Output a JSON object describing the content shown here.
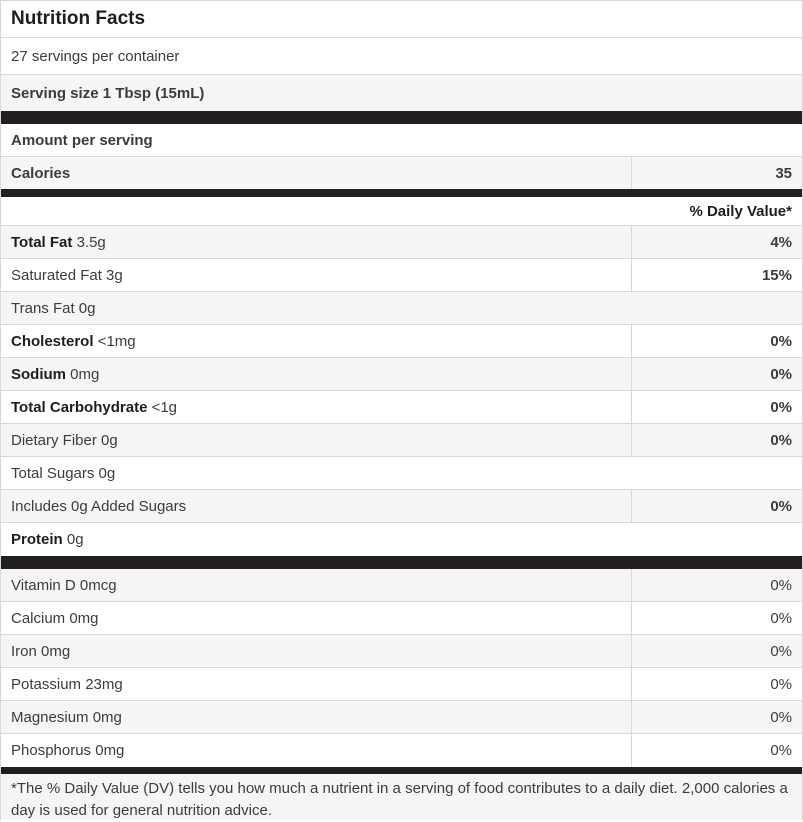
{
  "colors": {
    "bar": "#231f20",
    "alt_row_bg": "#f5f5f5",
    "border": "#d8d8d8",
    "text": "#3c3c3c",
    "text_bold": "#1e1e1e"
  },
  "header": {
    "title": "Nutrition Facts"
  },
  "serving_info": {
    "servings_per_container": "27 servings per container",
    "serving_size": "Serving size 1 Tbsp (15mL)"
  },
  "calories_section": {
    "amount_label": "Amount per serving",
    "calories_label": "Calories",
    "calories_value": "35"
  },
  "daily_value_header": "% Daily Value*",
  "nutrients": [
    {
      "bold": "Total Fat",
      "rest": " 3.5g",
      "dv": "4%"
    },
    {
      "bold": "",
      "rest": "Saturated Fat 3g",
      "dv": "15%"
    },
    {
      "bold": "",
      "rest": "Trans Fat 0g",
      "dv": ""
    },
    {
      "bold": "Cholesterol",
      "rest": " <1mg",
      "dv": "0%"
    },
    {
      "bold": "Sodium",
      "rest": " 0mg",
      "dv": "0%"
    },
    {
      "bold": "Total Carbohydrate",
      "rest": " <1g",
      "dv": "0%"
    },
    {
      "bold": "",
      "rest": "Dietary Fiber 0g",
      "dv": "0%"
    },
    {
      "bold": "",
      "rest": "Total Sugars 0g",
      "dv": ""
    },
    {
      "bold": "",
      "rest": "Includes 0g Added Sugars",
      "dv": "0%"
    },
    {
      "bold": "Protein",
      "rest": " 0g",
      "dv": ""
    }
  ],
  "micronutrients": [
    {
      "label": "Vitamin D 0mcg",
      "dv": "0%"
    },
    {
      "label": "Calcium 0mg",
      "dv": "0%"
    },
    {
      "label": "Iron 0mg",
      "dv": "0%"
    },
    {
      "label": "Potassium 23mg",
      "dv": "0%"
    },
    {
      "label": "Magnesium 0mg",
      "dv": "0%"
    },
    {
      "label": "Phosphorus 0mg",
      "dv": "0%"
    }
  ],
  "footnote": "*The % Daily Value (DV) tells you how much a nutrient in a serving of food contributes to a daily diet. 2,000 calories a day is used for general nutrition advice."
}
